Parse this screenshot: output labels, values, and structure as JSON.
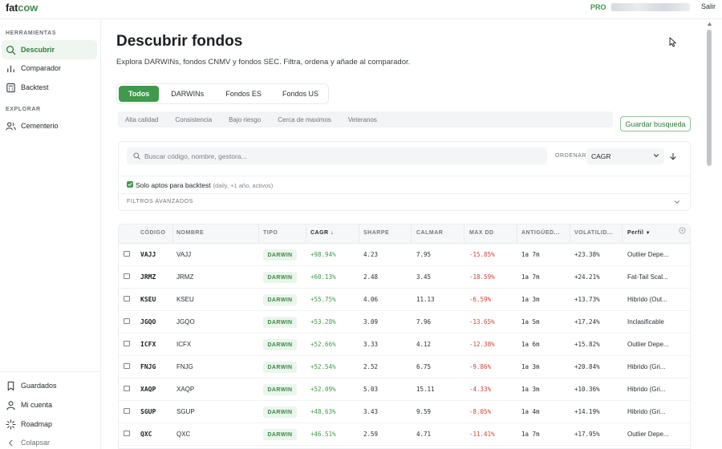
{
  "app": {
    "logo_a": "fat",
    "logo_b": "cow",
    "pro_badge": "PRO",
    "logout": "Salir"
  },
  "sidebar": {
    "section_tools": "HERRAMIENTAS",
    "section_explore": "EXPLORAR",
    "items": [
      {
        "label": "Descubrir",
        "icon": "search-icon"
      },
      {
        "label": "Comparador",
        "icon": "bar-chart-icon"
      },
      {
        "label": "Backtest",
        "icon": "calculator-icon"
      },
      {
        "label": "Cementerio",
        "icon": "users-icon"
      }
    ],
    "bottom": [
      {
        "label": "Guardados",
        "icon": "bookmark-icon"
      },
      {
        "label": "Mi cuenta",
        "icon": "user-icon"
      },
      {
        "label": "Roadmap",
        "icon": "sparkle-icon"
      },
      {
        "label": "Colapsar",
        "icon": "chevron-left-icon"
      }
    ]
  },
  "main": {
    "title": "Descubrir fondos",
    "subtitle": "Explora DARWINs, fondos CNMV y fondos SEC. Filtra, ordena y añade al comparador.",
    "tabs": [
      "Todos",
      "DARWINs",
      "Fondos ES",
      "Fondos US"
    ],
    "active_tab": "Todos",
    "presets": [
      "Alta calidad",
      "Consistencia",
      "Bajo riesgo",
      "Cerca de maximos",
      "Veteranos"
    ],
    "save_search": "Guardar busqueda",
    "search": {
      "placeholder": "Buscar código, nombre, gestora...",
      "value": ""
    },
    "order_label": "ORDENAR",
    "order_value": "CAGR",
    "backtest_filter": {
      "label": "Solo aptos para backtest",
      "note": "(daily, +1 año, activos)",
      "checked": true
    },
    "advanced_filters": "FILTROS AVANZADOS"
  },
  "table": {
    "columns": [
      "CÓDIGO",
      "NOMBRE",
      "TIPO",
      "CAGR",
      "SHARPE",
      "CALMAR",
      "MAX DD",
      "ANTIGÜED...",
      "VOLATILID...",
      "Perfil"
    ],
    "rows": [
      {
        "code": "VAJJ",
        "name": "VAJJ",
        "type": "DARWIN",
        "cagr": "+98.94%",
        "sharpe": "4.23",
        "calmar": "7.95",
        "maxdd": "-15.85%",
        "age": "1a 7m",
        "vol": "+23.38%",
        "profile": "Outlier Depe..."
      },
      {
        "code": "JRMZ",
        "name": "JRMZ",
        "type": "DARWIN",
        "cagr": "+60.13%",
        "sharpe": "2.48",
        "calmar": "3.45",
        "maxdd": "-18.59%",
        "age": "1a 7m",
        "vol": "+24.21%",
        "profile": "Fat-Tail Scal..."
      },
      {
        "code": "KSEU",
        "name": "KSEU",
        "type": "DARWIN",
        "cagr": "+55.75%",
        "sharpe": "4.06",
        "calmar": "11.13",
        "maxdd": "-6.59%",
        "age": "1a 3m",
        "vol": "+13.73%",
        "profile": "Hibrido (Out..."
      },
      {
        "code": "JGQO",
        "name": "JGQO",
        "type": "DARWIN",
        "cagr": "+53.28%",
        "sharpe": "3.09",
        "calmar": "7.96",
        "maxdd": "-13.65%",
        "age": "1a 5m",
        "vol": "+17.24%",
        "profile": "Inclasificable"
      },
      {
        "code": "ICFX",
        "name": "ICFX",
        "type": "DARWIN",
        "cagr": "+52.66%",
        "sharpe": "3.33",
        "calmar": "4.12",
        "maxdd": "-12.38%",
        "age": "1a 6m",
        "vol": "+15.82%",
        "profile": "Outlier Depe..."
      },
      {
        "code": "FNJG",
        "name": "FNJG",
        "type": "DARWIN",
        "cagr": "+52.54%",
        "sharpe": "2.52",
        "calmar": "6.75",
        "maxdd": "-9.86%",
        "age": "1a 3m",
        "vol": "+20.84%",
        "profile": "Hibrido (Gri..."
      },
      {
        "code": "XAQP",
        "name": "XAQP",
        "type": "DARWIN",
        "cagr": "+52.09%",
        "sharpe": "5.03",
        "calmar": "15.11",
        "maxdd": "-4.33%",
        "age": "1a 3m",
        "vol": "+10.36%",
        "profile": "Hibrido (Gri..."
      },
      {
        "code": "SGUP",
        "name": "SGUP",
        "type": "DARWIN",
        "cagr": "+48.63%",
        "sharpe": "3.43",
        "calmar": "9.59",
        "maxdd": "-8.05%",
        "age": "1a 4m",
        "vol": "+14.19%",
        "profile": "Hibrido (Gri..."
      },
      {
        "code": "QXC",
        "name": "QXC",
        "type": "DARWIN",
        "cagr": "+46.51%",
        "sharpe": "2.59",
        "calmar": "4.71",
        "maxdd": "-11.41%",
        "age": "1a 7m",
        "vol": "+17.95%",
        "profile": "Outlier Depe..."
      }
    ]
  },
  "colors": {
    "accent": "#3f9a4c",
    "positive": "#3d9a4a",
    "negative": "#d0433a"
  }
}
